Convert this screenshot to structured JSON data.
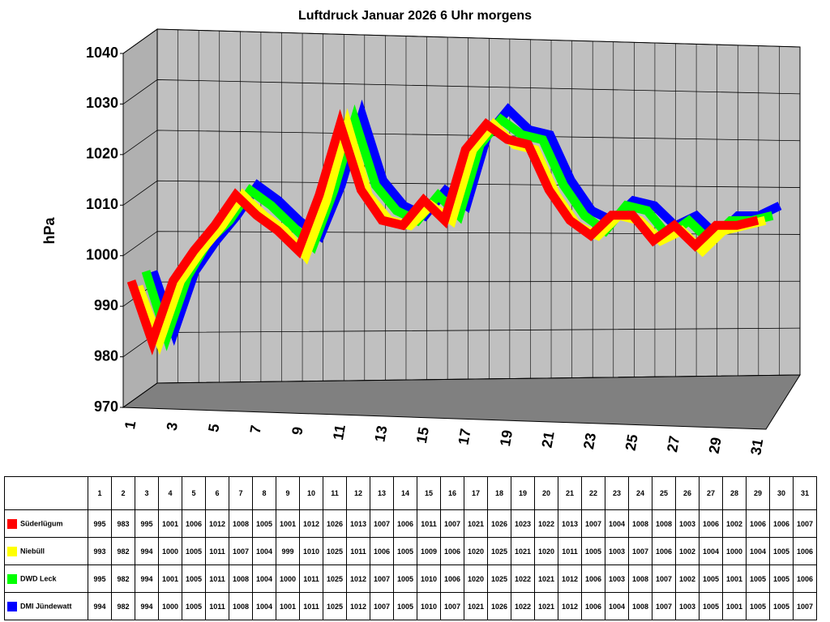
{
  "chart_data": {
    "type": "line",
    "title": "Luftdruck Januar 2026 6 Uhr morgens",
    "y_label": "hPa",
    "categories": [
      "1",
      "2",
      "3",
      "4",
      "5",
      "6",
      "7",
      "8",
      "9",
      "10",
      "11",
      "12",
      "13",
      "14",
      "15",
      "16",
      "17",
      "18",
      "19",
      "20",
      "21",
      "22",
      "23",
      "24",
      "25",
      "26",
      "27",
      "28",
      "29",
      "30",
      "31"
    ],
    "ylim": [
      970,
      1040
    ],
    "yticks": [
      970,
      980,
      990,
      1000,
      1010,
      1020,
      1030,
      1040
    ],
    "grid": true,
    "series": [
      {
        "name": "Süderlügum",
        "color": "#ff0000",
        "values": [
          995,
          983,
          995,
          1001,
          1006,
          1012,
          1008,
          1005,
          1001,
          1012,
          1026,
          1013,
          1007,
          1006,
          1011,
          1007,
          1021,
          1026,
          1023,
          1022,
          1013,
          1007,
          1004,
          1008,
          1008,
          1003,
          1006,
          1002,
          1006,
          1006,
          1007
        ]
      },
      {
        "name": "Niebüll",
        "color": "#ffff00",
        "values": [
          993,
          982,
          994,
          1000,
          1005,
          1011,
          1007,
          1004,
          999,
          1010,
          1025,
          1011,
          1006,
          1005,
          1009,
          1006,
          1020,
          1025,
          1021,
          1020,
          1011,
          1005,
          1003,
          1007,
          1006,
          1002,
          1004,
          1000,
          1004,
          1005,
          1006
        ]
      },
      {
        "name": "DWD Leck",
        "color": "#00ff00",
        "values": [
          995,
          982,
          994,
          1001,
          1005,
          1011,
          1008,
          1004,
          1000,
          1011,
          1025,
          1012,
          1007,
          1005,
          1010,
          1006,
          1020,
          1025,
          1022,
          1021,
          1012,
          1006,
          1003,
          1008,
          1007,
          1002,
          1005,
          1001,
          1005,
          1005,
          1006
        ]
      },
      {
        "name": "DMI Jündewatt",
        "color": "#0000ff",
        "values": [
          994,
          982,
          994,
          1000,
          1005,
          1011,
          1008,
          1004,
          1001,
          1011,
          1025,
          1012,
          1007,
          1005,
          1010,
          1007,
          1021,
          1026,
          1022,
          1021,
          1012,
          1006,
          1004,
          1008,
          1007,
          1003,
          1005,
          1001,
          1005,
          1005,
          1007
        ]
      }
    ]
  }
}
